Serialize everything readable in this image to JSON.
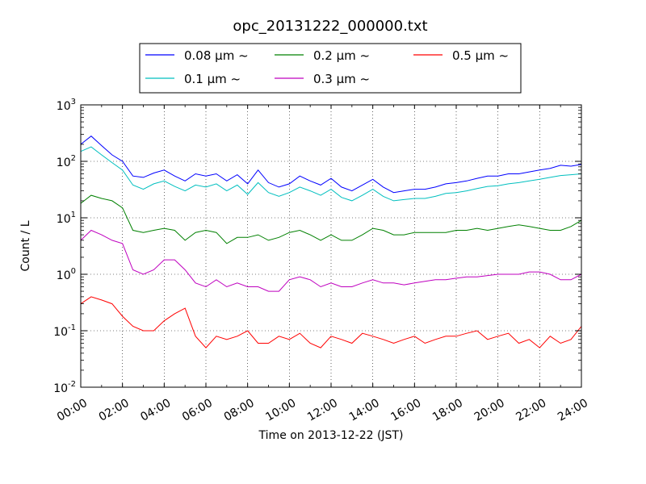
{
  "chart_data": {
    "type": "line",
    "title": "opc_20131222_000000.txt",
    "xlabel": "Time on 2013-12-22 (JST)",
    "ylabel": "Count / L",
    "yscale": "log",
    "ylim": [
      0.01,
      1000
    ],
    "xlim_hours": [
      0,
      24
    ],
    "grid": true,
    "legend_placement": "top, above plot",
    "x_tick_labels": [
      "00:00",
      "02:00",
      "04:00",
      "06:00",
      "08:00",
      "10:00",
      "12:00",
      "14:00",
      "16:00",
      "18:00",
      "20:00",
      "22:00",
      "24:00"
    ],
    "y_ticks": [
      {
        "base": "10",
        "exp": "-2"
      },
      {
        "base": "10",
        "exp": "-1"
      },
      {
        "base": "10",
        "exp": "0"
      },
      {
        "base": "10",
        "exp": "1"
      },
      {
        "base": "10",
        "exp": "2"
      },
      {
        "base": "10",
        "exp": "3"
      }
    ],
    "x_hours": [
      0,
      0.5,
      1,
      1.5,
      2,
      2.5,
      3,
      3.5,
      4,
      4.5,
      5,
      5.5,
      6,
      6.5,
      7,
      7.5,
      8,
      8.5,
      9,
      9.5,
      10,
      10.5,
      11,
      11.5,
      12,
      12.5,
      13,
      13.5,
      14,
      14.5,
      15,
      15.5,
      16,
      16.5,
      17,
      17.5,
      18,
      18.5,
      19,
      19.5,
      20,
      20.5,
      21,
      21.5,
      22,
      22.5,
      23,
      23.5,
      24
    ],
    "series": [
      {
        "name": "0.08 μm ~",
        "color": "#0000ff",
        "values": [
          200,
          280,
          190,
          130,
          100,
          55,
          52,
          62,
          70,
          55,
          45,
          60,
          55,
          60,
          45,
          58,
          40,
          70,
          42,
          35,
          40,
          55,
          45,
          38,
          50,
          35,
          30,
          38,
          48,
          35,
          28,
          30,
          32,
          32,
          35,
          40,
          42,
          45,
          50,
          55,
          55,
          60,
          60,
          65,
          70,
          75,
          85,
          82,
          88
        ]
      },
      {
        "name": "0.1 μm ~",
        "color": "#00bfbf",
        "values": [
          150,
          180,
          130,
          95,
          70,
          38,
          32,
          40,
          45,
          36,
          30,
          38,
          35,
          40,
          30,
          38,
          26,
          42,
          28,
          24,
          28,
          35,
          30,
          25,
          32,
          23,
          20,
          25,
          32,
          24,
          20,
          21,
          22,
          22,
          24,
          27,
          28,
          30,
          33,
          36,
          37,
          40,
          42,
          45,
          48,
          52,
          56,
          58,
          60
        ]
      },
      {
        "name": "0.2 μm ~",
        "color": "#008000",
        "values": [
          18,
          25,
          22,
          20,
          15,
          6,
          5.5,
          6,
          6.5,
          6,
          4,
          5.5,
          6,
          5.5,
          3.5,
          4.5,
          4.5,
          5,
          4,
          4.5,
          5.5,
          6,
          5,
          4,
          5,
          4,
          4,
          5,
          6.5,
          6,
          5,
          5,
          5.5,
          5.5,
          5.5,
          5.5,
          6,
          6,
          6.5,
          6,
          6.5,
          7,
          7.5,
          7,
          6.5,
          6,
          6,
          7,
          9
        ]
      },
      {
        "name": "0.3 μm ~",
        "color": "#bf00bf",
        "values": [
          4,
          6,
          5,
          4,
          3.5,
          1.2,
          1,
          1.2,
          1.8,
          1.8,
          1.2,
          0.7,
          0.6,
          0.8,
          0.6,
          0.7,
          0.6,
          0.6,
          0.5,
          0.5,
          0.8,
          0.9,
          0.8,
          0.6,
          0.7,
          0.6,
          0.6,
          0.7,
          0.8,
          0.7,
          0.7,
          0.65,
          0.7,
          0.75,
          0.8,
          0.8,
          0.85,
          0.9,
          0.9,
          0.95,
          1,
          1,
          1,
          1.1,
          1.1,
          1,
          0.8,
          0.8,
          1
        ]
      },
      {
        "name": "0.5 μm ~",
        "color": "#ff0000",
        "values": [
          0.3,
          0.4,
          0.35,
          0.3,
          0.18,
          0.12,
          0.1,
          0.1,
          0.15,
          0.2,
          0.25,
          0.08,
          0.05,
          0.08,
          0.07,
          0.08,
          0.1,
          0.06,
          0.06,
          0.08,
          0.07,
          0.09,
          0.06,
          0.05,
          0.08,
          0.07,
          0.06,
          0.09,
          0.08,
          0.07,
          0.06,
          0.07,
          0.08,
          0.06,
          0.07,
          0.08,
          0.08,
          0.09,
          0.1,
          0.07,
          0.08,
          0.09,
          0.06,
          0.07,
          0.05,
          0.08,
          0.06,
          0.07,
          0.12
        ]
      }
    ]
  }
}
